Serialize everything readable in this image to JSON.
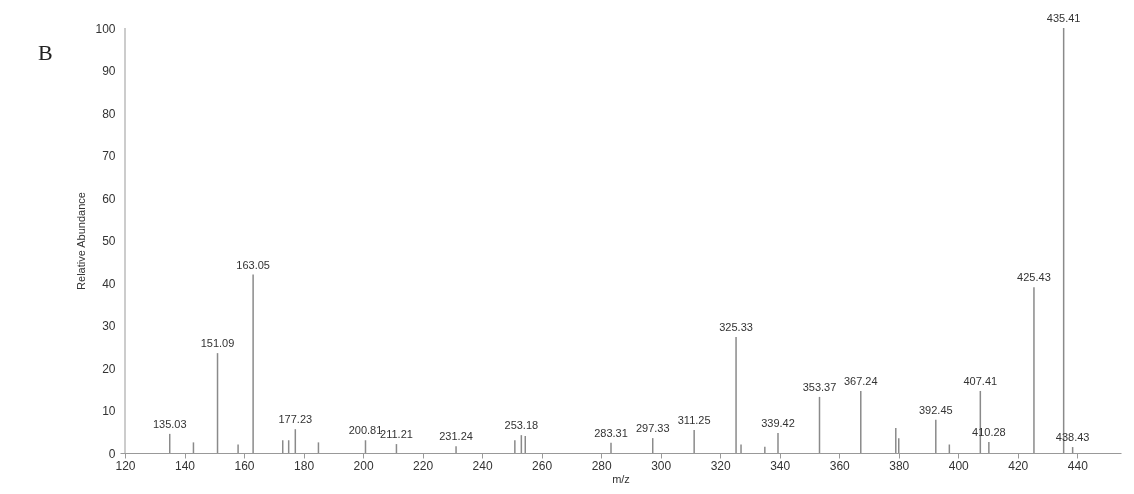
{
  "chart_data": {
    "type": "bar",
    "xlabel": "m/z",
    "ylabel": "Relative Abundance",
    "annotations": [
      "B",
      {
        "text": "135.03",
        "x": 135.03,
        "y": 4.5
      },
      {
        "text": "151.09",
        "x": 151.09,
        "y": 23.5
      },
      {
        "text": "163.05",
        "x": 163.05,
        "y": 42
      },
      {
        "text": "177.23",
        "x": 177.23,
        "y": 5.6
      },
      {
        "text": "200.81",
        "x": 200.81,
        "y": 3
      },
      {
        "text": "211.21",
        "x": 211.21,
        "y": 2.1
      },
      {
        "text": "231.24",
        "x": 231.24,
        "y": 1.6
      },
      {
        "text": "253.18",
        "x": 253.18,
        "y": 4.2
      },
      {
        "text": "283.31",
        "x": 283.31,
        "y": 2.4
      },
      {
        "text": "297.33",
        "x": 297.33,
        "y": 3.5
      },
      {
        "text": "311.25",
        "x": 311.25,
        "y": 5.4
      },
      {
        "text": "325.33",
        "x": 325.33,
        "y": 27.3
      },
      {
        "text": "339.42",
        "x": 339.42,
        "y": 4.7
      },
      {
        "text": "353.37",
        "x": 353.37,
        "y": 13.2
      },
      {
        "text": "367.24",
        "x": 367.24,
        "y": 14.6
      },
      {
        "text": "392.45",
        "x": 392.45,
        "y": 7.8
      },
      {
        "text": "407.41",
        "x": 407.41,
        "y": 14.6
      },
      {
        "text": "410.28",
        "x": 410.28,
        "y": 2.6
      },
      {
        "text": "425.43",
        "x": 425.43,
        "y": 39
      },
      {
        "text": "435.41",
        "x": 435.41,
        "y": 100
      },
      {
        "text": "438.43",
        "x": 438.43,
        "y": 1.4
      }
    ],
    "x": [
      135.03,
      143,
      151.09,
      158,
      163.05,
      173,
      175,
      177.23,
      185,
      200.81,
      211.21,
      231.24,
      251,
      253.18,
      254.5,
      283.31,
      297.33,
      311.25,
      325.33,
      327,
      335,
      339.42,
      353.37,
      367.24,
      379,
      380,
      392.45,
      397,
      407.41,
      410.28,
      425.43,
      435.41,
      438.43
    ],
    "values": [
      4.5,
      2.5,
      23.5,
      2,
      42,
      3,
      3,
      5.6,
      2.5,
      3,
      2.1,
      1.6,
      3,
      4.2,
      4,
      2.4,
      3.5,
      5.4,
      27.3,
      2,
      1.5,
      4.7,
      13.2,
      14.6,
      5.9,
      3.5,
      7.8,
      2,
      14.6,
      2.6,
      39,
      100,
      1.4
    ],
    "color": "#8a8a8a",
    "xlim": [
      120,
      453
    ],
    "xticks": [
      120,
      140,
      160,
      180,
      200,
      220,
      240,
      260,
      280,
      300,
      320,
      340,
      360,
      380,
      400,
      420,
      440
    ],
    "ylim": [
      0,
      100
    ],
    "yticks": [
      0,
      10,
      20,
      30,
      40,
      50,
      60,
      70,
      80,
      90,
      100
    ],
    "grid": false
  }
}
